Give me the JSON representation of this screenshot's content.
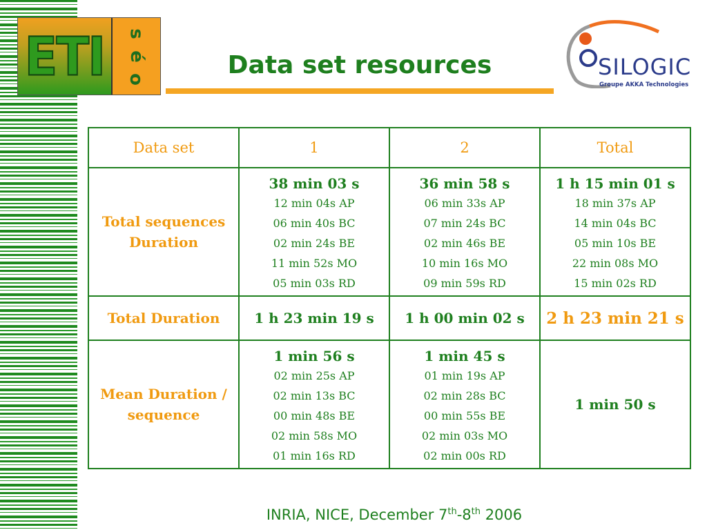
{
  "logo": {
    "main_text": "ETI",
    "side_letters": [
      "s",
      "é",
      "o"
    ]
  },
  "title": "Data set resources",
  "partner_logo": {
    "name": "SILOGIC",
    "subtitle": "Groupe AKKA Technologies"
  },
  "table": {
    "headers": [
      "Data set",
      "1",
      "2",
      "Total"
    ],
    "rows": [
      {
        "label": "Total sequences Duration",
        "cells": [
          {
            "main": "38 min 03 s",
            "details": [
              "12 min 04s  AP",
              "06 min 40s  BC",
              "02 min 24s  BE",
              "11 min 52s  MO",
              "05 min 03s  RD"
            ]
          },
          {
            "main": "36 min 58 s",
            "details": [
              "06 min 33s  AP",
              "07 min 24s  BC",
              "02 min 46s  BE",
              "10 min 16s  MO",
              "09 min 59s  RD"
            ]
          },
          {
            "main": "1 h 15 min 01 s",
            "details": [
              "18 min 37s  AP",
              "14 min 04s  BC",
              "05 min 10s  BE",
              "22 min 08s  MO",
              "15 min 02s  RD"
            ]
          }
        ]
      },
      {
        "label": "Total Duration",
        "cells": [
          {
            "main": "1 h 23 min 19 s"
          },
          {
            "main": "1 h 00 min 02 s"
          },
          {
            "main": "2 h 23 min 21 s"
          }
        ]
      },
      {
        "label": "Mean Duration / sequence",
        "cells": [
          {
            "main": "1 min 56 s",
            "details": [
              "02 min 25s  AP",
              "02 min 13s  BC",
              "00 min 48s  BE",
              "02 min 58s  MO",
              "01 min 16s  RD"
            ]
          },
          {
            "main": "1 min 45 s",
            "details": [
              "01 min 19s  AP",
              "02 min 28s  BC",
              "00 min 55s  BE",
              "02 min 03s  MO",
              "02 min 00s  RD"
            ]
          },
          {
            "main": "1 min 50 s"
          }
        ]
      }
    ]
  },
  "footer": {
    "text": "INRIA, NICE, December 7",
    "sup1": "th",
    "mid": "-8",
    "sup2": "th",
    "year": " 2006"
  },
  "colors": {
    "green": "#1e7f1e",
    "orange": "#f09a10"
  }
}
